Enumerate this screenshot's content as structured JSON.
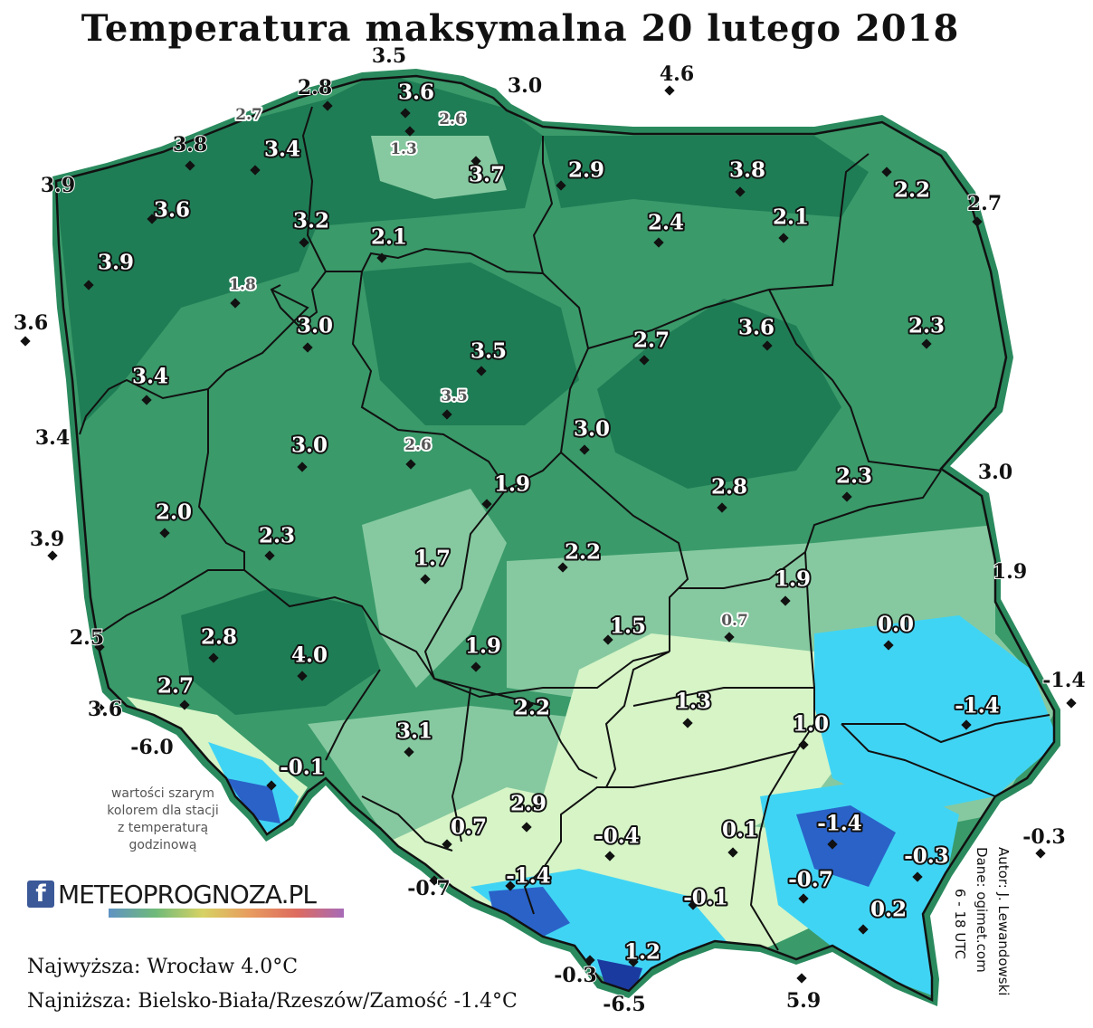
{
  "title": "Temperatura maksymalna 20 lutego 2018",
  "note_lines": [
    "wartości szarym",
    "kolorem dla stacji",
    "z temperaturą",
    "godzinową"
  ],
  "logo": {
    "icon": "facebook-icon",
    "text": "METEOPROGNOZA.PL"
  },
  "highest": "Najwyższa: Wrocław 4.0°C",
  "lowest": "Najniższa: Bielsko-Biała/Rzeszów/Zamość -1.4°C",
  "credits": [
    "Autor: J. Lewandowski",
    "Dane: ogimet.com",
    "6 - 18 UTC"
  ],
  "colors": {
    "dark_green": "#1e7a52",
    "mid_green": "#3a9a6a",
    "light_green": "#86c9a0",
    "pale_green": "#d6f4c6",
    "cyan": "#40d4f4",
    "blue": "#2a62c8",
    "sea_border": "#2a8a5e"
  },
  "stations": [
    {
      "v": "3.5",
      "style": "out"
    },
    {
      "v": "3.0",
      "style": "out"
    },
    {
      "v": "4.6",
      "style": "out"
    },
    {
      "v": "2.8",
      "style": "out"
    },
    {
      "v": "3.6",
      "style": "box"
    },
    {
      "v": "2.7",
      "style": "gray"
    },
    {
      "v": "2.6",
      "style": "gray"
    },
    {
      "v": "1.3",
      "style": "gray"
    },
    {
      "v": "3.8",
      "style": "out"
    },
    {
      "v": "3.4",
      "style": "box"
    },
    {
      "v": "3.7",
      "style": "box"
    },
    {
      "v": "2.9",
      "style": "box"
    },
    {
      "v": "3.8",
      "style": "box"
    },
    {
      "v": "2.2",
      "style": "box"
    },
    {
      "v": "3.9",
      "style": "out"
    },
    {
      "v": "3.6",
      "style": "box"
    },
    {
      "v": "3.2",
      "style": "box"
    },
    {
      "v": "2.1",
      "style": "box"
    },
    {
      "v": "2.4",
      "style": "box"
    },
    {
      "v": "2.1",
      "style": "box"
    },
    {
      "v": "2.7",
      "style": "out"
    },
    {
      "v": "3.9",
      "style": "box"
    },
    {
      "v": "1.8",
      "style": "gray"
    },
    {
      "v": "3.6",
      "style": "out"
    },
    {
      "v": "3.0",
      "style": "box"
    },
    {
      "v": "3.5",
      "style": "box"
    },
    {
      "v": "2.7",
      "style": "box"
    },
    {
      "v": "3.6",
      "style": "box"
    },
    {
      "v": "2.3",
      "style": "box"
    },
    {
      "v": "3.4",
      "style": "box"
    },
    {
      "v": "3.5",
      "style": "gray"
    },
    {
      "v": "3.4",
      "style": "out"
    },
    {
      "v": "3.0",
      "style": "box"
    },
    {
      "v": "2.6",
      "style": "gray"
    },
    {
      "v": "3.0",
      "style": "box"
    },
    {
      "v": "1.9",
      "style": "box"
    },
    {
      "v": "2.8",
      "style": "box"
    },
    {
      "v": "2.3",
      "style": "box"
    },
    {
      "v": "3.0",
      "style": "out"
    },
    {
      "v": "3.9",
      "style": "out"
    },
    {
      "v": "2.0",
      "style": "box"
    },
    {
      "v": "2.3",
      "style": "box"
    },
    {
      "v": "1.7",
      "style": "box"
    },
    {
      "v": "2.2",
      "style": "box"
    },
    {
      "v": "1.9",
      "style": "box"
    },
    {
      "v": "1.9",
      "style": "out"
    },
    {
      "v": "0.7",
      "style": "gray"
    },
    {
      "v": "1.5",
      "style": "box"
    },
    {
      "v": "0.0",
      "style": "box"
    },
    {
      "v": "2.5",
      "style": "out"
    },
    {
      "v": "2.8",
      "style": "box"
    },
    {
      "v": "4.0",
      "style": "box"
    },
    {
      "v": "1.9",
      "style": "box"
    },
    {
      "v": "-1.4",
      "style": "out"
    },
    {
      "v": "2.7",
      "style": "box"
    },
    {
      "v": "2.2",
      "style": "box"
    },
    {
      "v": "1.3",
      "style": "box"
    },
    {
      "v": "1.0",
      "style": "box"
    },
    {
      "v": "-1.4",
      "style": "box"
    },
    {
      "v": "3.6",
      "style": "out"
    },
    {
      "v": "-6.0",
      "style": "out"
    },
    {
      "v": "3.1",
      "style": "box"
    },
    {
      "v": "-0.1",
      "style": "box"
    },
    {
      "v": "2.9",
      "style": "box"
    },
    {
      "v": "0.7",
      "style": "box"
    },
    {
      "v": "-0.4",
      "style": "box"
    },
    {
      "v": "0.1",
      "style": "box"
    },
    {
      "v": "-1.4",
      "style": "box"
    },
    {
      "v": "-0.3",
      "style": "out"
    },
    {
      "v": "-0.3",
      "style": "box"
    },
    {
      "v": "-1.4",
      "style": "box"
    },
    {
      "v": "-0.7",
      "style": "box"
    },
    {
      "v": "-0.7",
      "style": "out"
    },
    {
      "v": "-0.1",
      "style": "box"
    },
    {
      "v": "0.2",
      "style": "box"
    },
    {
      "v": "1.2",
      "style": "box"
    },
    {
      "v": "-0.3",
      "style": "out"
    },
    {
      "v": "-6.5",
      "style": "out"
    },
    {
      "v": "5.9",
      "style": "out"
    }
  ]
}
